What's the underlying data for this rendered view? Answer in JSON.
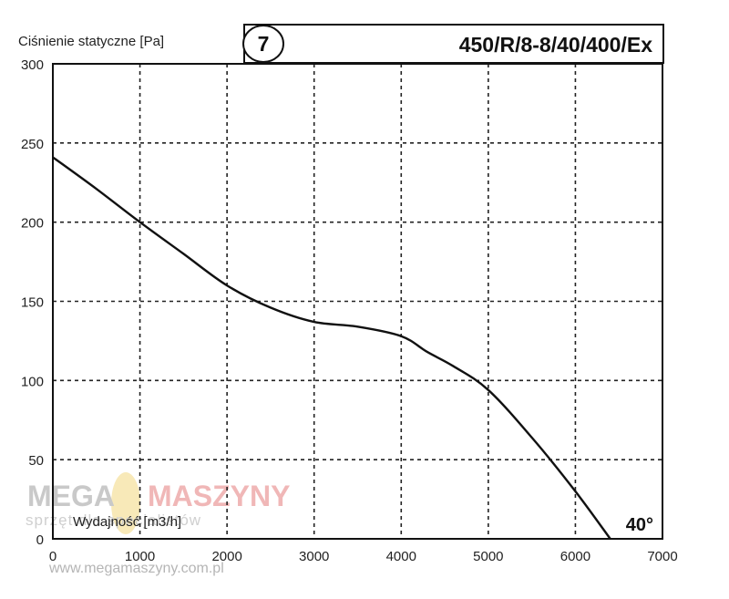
{
  "chart_data": {
    "type": "line",
    "ylabel": "Ciśnienie statyczne [Pa]",
    "xlabel": "Wydajność [m3/h]",
    "badge_number": "7",
    "model": "450/R/8-8/40/400/Ex",
    "angle_label": "40°",
    "xlim": [
      0,
      7000
    ],
    "ylim": [
      0,
      300
    ],
    "x_ticks": [
      "0",
      "1000",
      "2000",
      "3000",
      "4000",
      "5000",
      "6000",
      "7000"
    ],
    "y_ticks": [
      "0",
      "50",
      "100",
      "150",
      "200",
      "250",
      "300"
    ],
    "grid": true,
    "series": [
      {
        "x": [
          0,
          500,
          1000,
          1500,
          2000,
          2500,
          3000,
          3500,
          4000,
          4300,
          4600,
          5000,
          5500,
          6000,
          6400
        ],
        "y": [
          241,
          221,
          200,
          180,
          160,
          146,
          137,
          134,
          128,
          118,
          109,
          94,
          64,
          30,
          0
        ]
      }
    ]
  },
  "watermark": {
    "brand_left": "MEGA",
    "brand_right": "MASZYNY",
    "tagline": "sprzęt dla specjalistów",
    "url": "www.megamaszyny.com.pl"
  }
}
